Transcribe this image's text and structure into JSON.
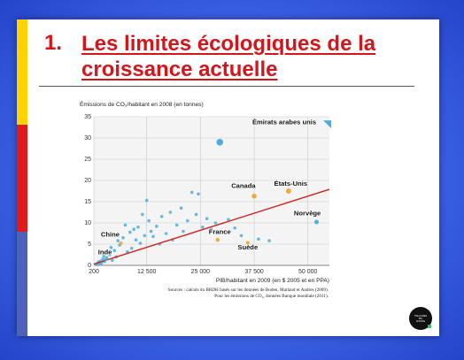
{
  "slide": {
    "number": "1.",
    "title": "Les limites écologiques de la croissance actuelle"
  },
  "logo": {
    "line1": "THE GAMES",
    "line2": "BIG",
    "line3": "CHANCE"
  },
  "source": {
    "line1": "Sources : calculs du BRDH basés sur les données de Boden, Marland et Andres (2009).",
    "line2": "Pour les émissions de CO₂, données Banque mondiale (2011)."
  },
  "colors": {
    "accent": "#d7141a",
    "point_blue": "#4aaee0",
    "point_orange": "#f0a93a",
    "trend": "#d42020"
  },
  "chart_data": {
    "type": "scatter",
    "ylabel": "Émissions de CO₂/habitant en 2008 (en tonnes)",
    "xlabel": "PIB/habitant en 2009 (en $ 2005 et en PPA)",
    "xlim": [
      200,
      55000
    ],
    "ylim": [
      0,
      35
    ],
    "x_ticks": [
      200,
      12500,
      25000,
      37500,
      50000
    ],
    "x_tick_labels": [
      "200",
      "12 500",
      "25 000",
      "37 500",
      "50 000"
    ],
    "y_ticks": [
      0,
      5,
      10,
      15,
      20,
      25,
      30,
      35
    ],
    "y_tick_labels": [
      "0",
      "5",
      "10",
      "15",
      "20",
      "25",
      "30",
      "35"
    ],
    "grid": true,
    "trend_line": {
      "x": [
        200,
        55000
      ],
      "y": [
        0.3,
        17.9
      ]
    },
    "labels": [
      {
        "text": "Émirats arabes unis",
        "x": 44500,
        "y": 33.2
      },
      {
        "text": "Canada",
        "x": 35000,
        "y": 18.2
      },
      {
        "text": "États-Unis",
        "x": 46000,
        "y": 18.7
      },
      {
        "text": "Norvège",
        "x": 53000,
        "y": 11.8
      },
      {
        "text": "France",
        "x": 29500,
        "y": 7.4
      },
      {
        "text": "Suède",
        "x": 36000,
        "y": 3.8
      },
      {
        "text": "Chine",
        "x": 4000,
        "y": 6.8
      },
      {
        "text": "Inde",
        "x": 2800,
        "y": 2.6
      }
    ],
    "points_highlighted": [
      {
        "x": 54500,
        "y": 33.2,
        "r": 4.5,
        "shape": "triangle"
      },
      {
        "x": 29500,
        "y": 29.0,
        "r": 3.8
      },
      {
        "x": 37500,
        "y": 16.3,
        "r": 2.8
      },
      {
        "x": 45500,
        "y": 17.5,
        "r": 3.0
      },
      {
        "x": 52000,
        "y": 10.2,
        "r": 2.5
      },
      {
        "x": 29000,
        "y": 6.0,
        "r": 2.2
      },
      {
        "x": 36000,
        "y": 5.3,
        "r": 2.0
      },
      {
        "x": 6500,
        "y": 5.2,
        "r": 2.0
      },
      {
        "x": 3000,
        "y": 1.4,
        "r": 1.8
      }
    ],
    "points": [
      {
        "x": 700,
        "y": 0.2
      },
      {
        "x": 1000,
        "y": 0.4
      },
      {
        "x": 1300,
        "y": 0.8
      },
      {
        "x": 1500,
        "y": 0.3
      },
      {
        "x": 1800,
        "y": 1.0
      },
      {
        "x": 2000,
        "y": 0.5
      },
      {
        "x": 2300,
        "y": 1.5
      },
      {
        "x": 2500,
        "y": 2.2
      },
      {
        "x": 2700,
        "y": 0.9
      },
      {
        "x": 3200,
        "y": 1.8
      },
      {
        "x": 3500,
        "y": 3.0
      },
      {
        "x": 3900,
        "y": 2.5
      },
      {
        "x": 4200,
        "y": 4.2
      },
      {
        "x": 4500,
        "y": 1.2
      },
      {
        "x": 5000,
        "y": 3.5
      },
      {
        "x": 5400,
        "y": 2.0
      },
      {
        "x": 5800,
        "y": 5.8
      },
      {
        "x": 6200,
        "y": 4.8
      },
      {
        "x": 7000,
        "y": 6.5
      },
      {
        "x": 7500,
        "y": 9.5
      },
      {
        "x": 8000,
        "y": 3.2
      },
      {
        "x": 8600,
        "y": 7.8
      },
      {
        "x": 9000,
        "y": 4.0
      },
      {
        "x": 9500,
        "y": 8.5
      },
      {
        "x": 10000,
        "y": 6.0
      },
      {
        "x": 10500,
        "y": 9.0
      },
      {
        "x": 11000,
        "y": 5.2
      },
      {
        "x": 11500,
        "y": 12.0
      },
      {
        "x": 12000,
        "y": 7.0
      },
      {
        "x": 12500,
        "y": 15.3
      },
      {
        "x": 13000,
        "y": 10.5
      },
      {
        "x": 13500,
        "y": 8.0
      },
      {
        "x": 14000,
        "y": 6.8
      },
      {
        "x": 14800,
        "y": 9.2
      },
      {
        "x": 15500,
        "y": 5.0
      },
      {
        "x": 16000,
        "y": 11.5
      },
      {
        "x": 17000,
        "y": 7.5
      },
      {
        "x": 18000,
        "y": 12.5
      },
      {
        "x": 18500,
        "y": 6.0
      },
      {
        "x": 19500,
        "y": 9.5
      },
      {
        "x": 20500,
        "y": 13.5
      },
      {
        "x": 21000,
        "y": 8.0
      },
      {
        "x": 22000,
        "y": 10.5
      },
      {
        "x": 23000,
        "y": 17.2
      },
      {
        "x": 24000,
        "y": 12.0
      },
      {
        "x": 24500,
        "y": 16.8
      },
      {
        "x": 25500,
        "y": 9.0
      },
      {
        "x": 26500,
        "y": 11.0
      },
      {
        "x": 27500,
        "y": 8.5
      },
      {
        "x": 28500,
        "y": 10.0
      },
      {
        "x": 30500,
        "y": 7.8
      },
      {
        "x": 31500,
        "y": 10.8
      },
      {
        "x": 33000,
        "y": 8.8
      },
      {
        "x": 34500,
        "y": 7.0
      },
      {
        "x": 38500,
        "y": 6.2
      },
      {
        "x": 41000,
        "y": 5.8
      }
    ]
  }
}
